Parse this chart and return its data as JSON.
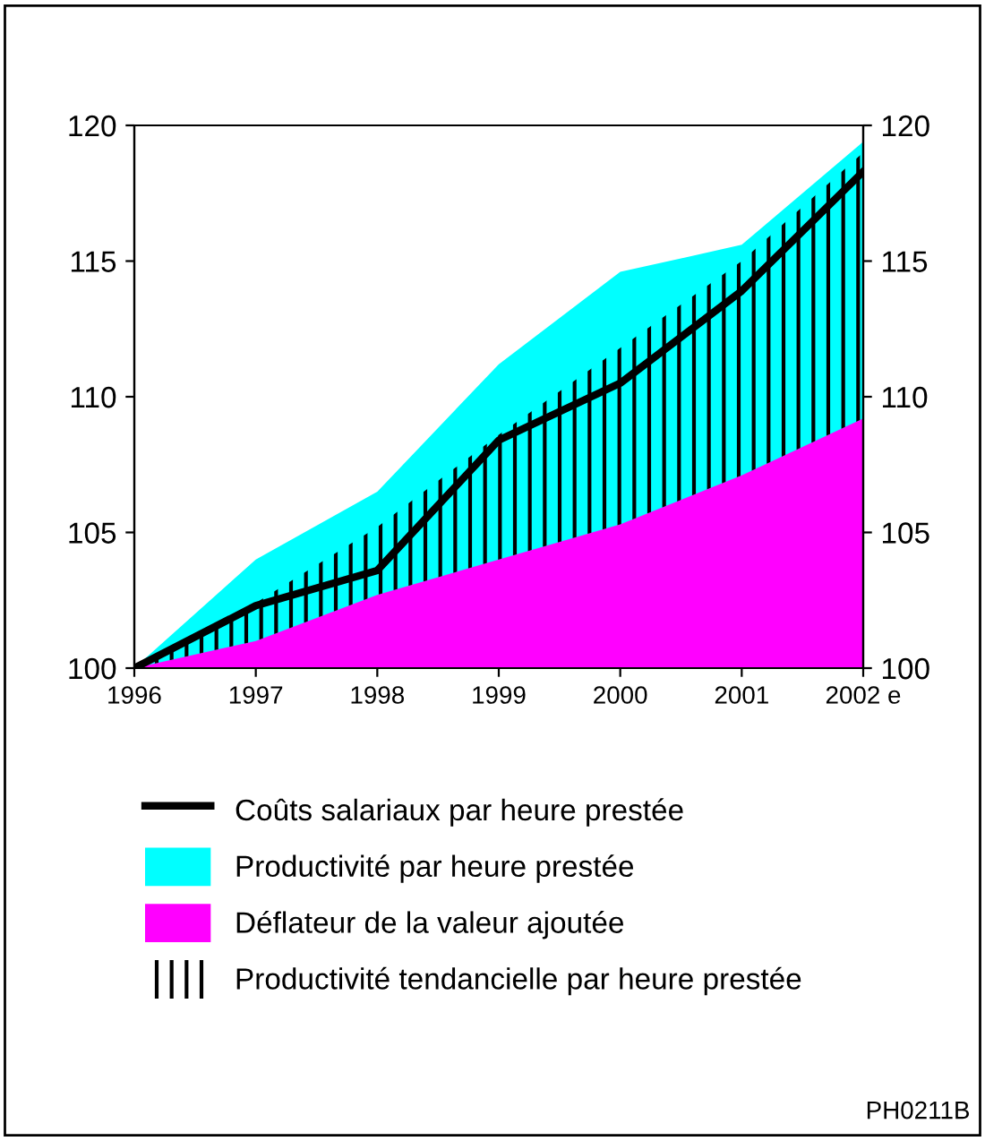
{
  "chart_data": {
    "type": "area",
    "x": [
      1996,
      1997,
      1998,
      1999,
      2000,
      2001,
      2002
    ],
    "series": [
      {
        "name": "Productivité par heure prestée",
        "color": "#00ffff",
        "values": [
          100,
          104.0,
          106.5,
          111.2,
          114.6,
          115.6,
          119.4
        ]
      },
      {
        "name": "Déflateur de la valeur ajoutée",
        "color": "#ff00ff",
        "values": [
          100,
          101.0,
          102.7,
          104.0,
          105.3,
          107.1,
          109.2
        ]
      },
      {
        "name": "Productivité tendancielle par heure prestée",
        "color": "#000000",
        "values": [
          100,
          102.4,
          105.2,
          108.6,
          111.8,
          115.0,
          119.0
        ]
      },
      {
        "name": "Coûts salariaux par heure prestée",
        "type": "line",
        "color": "#000000",
        "values": [
          100,
          102.3,
          103.6,
          108.4,
          110.5,
          113.9,
          118.3
        ]
      }
    ],
    "xlim": [
      1996,
      2002
    ],
    "xticks": [
      1996,
      1997,
      1998,
      1999,
      2000,
      2001,
      {
        "value": 2002,
        "label": "2002 e"
      }
    ],
    "ylim": [
      100,
      120
    ],
    "yticks": [
      100,
      105,
      110,
      115,
      120
    ],
    "y2lim": [
      100,
      120
    ],
    "y2ticks": [
      100,
      105,
      110,
      115,
      120
    ],
    "legend": "bottom",
    "grid": false,
    "annotations": [
      "PH0211B"
    ]
  }
}
